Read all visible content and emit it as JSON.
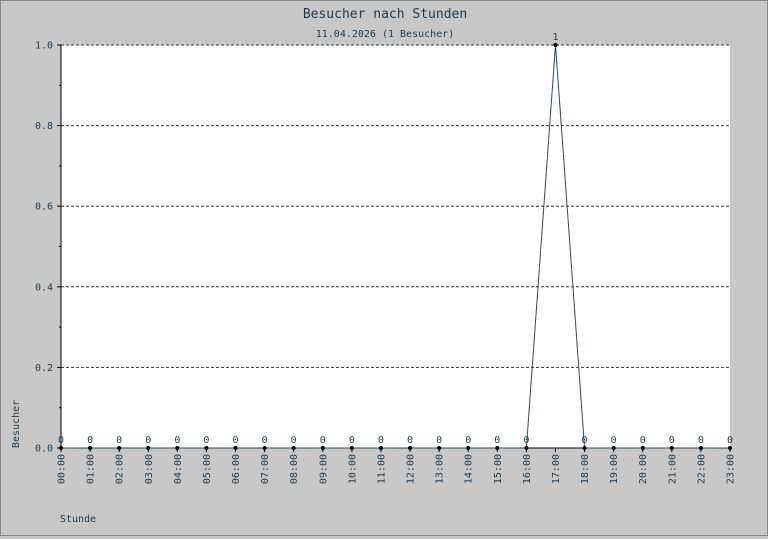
{
  "chart_data": {
    "type": "line",
    "title": "Besucher nach Stunden",
    "subtitle": "11.04.2026 (1 Besucher)",
    "xlabel": "Stunde",
    "ylabel": "Besucher",
    "categories": [
      "00:00",
      "01:00",
      "02:00",
      "03:00",
      "04:00",
      "05:00",
      "06:00",
      "07:00",
      "08:00",
      "09:00",
      "10:00",
      "11:00",
      "12:00",
      "13:00",
      "14:00",
      "15:00",
      "16:00",
      "17:00",
      "18:00",
      "19:00",
      "20:00",
      "21:00",
      "22:00",
      "23:00"
    ],
    "series": [
      {
        "values": [
          0,
          0,
          0,
          0,
          0,
          0,
          0,
          0,
          0,
          0,
          0,
          0,
          0,
          0,
          0,
          0,
          0,
          1,
          0,
          0,
          0,
          0,
          0,
          0
        ]
      }
    ],
    "ylim": [
      0,
      1.0
    ],
    "yticks": [
      "0.0",
      "0.2",
      "0.4",
      "0.6",
      "0.8",
      "1.0"
    ],
    "grid": true,
    "colors": {
      "line": "#2e4a5a",
      "grid": "#333333",
      "text": "#1f3a4d",
      "plot_bg": "#ffffff",
      "page_bg": "#c8c8c8"
    }
  }
}
